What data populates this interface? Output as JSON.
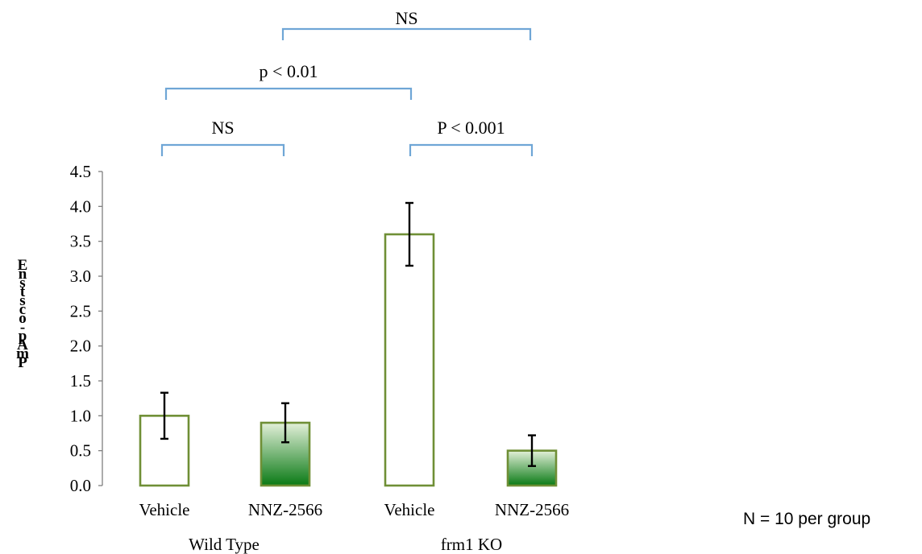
{
  "chart_data": {
    "type": "bar",
    "ylabel": "Enstsco-pAmP",
    "ylim": [
      0,
      4.5
    ],
    "y_ticks": [
      "0.0",
      "0.5",
      "1.0",
      "1.5",
      "2.0",
      "2.5",
      "3.0",
      "3.5",
      "4.0",
      "4.5"
    ],
    "categories": [
      "Vehicle",
      "NNZ-2566",
      "Vehicle",
      "NNZ-2566"
    ],
    "groups": [
      {
        "label": "Wild Type",
        "categories": [
          0,
          1
        ]
      },
      {
        "label": "frm1 KO",
        "categories": [
          2,
          3
        ]
      }
    ],
    "bars": [
      {
        "label": "Vehicle",
        "group": "Wild Type",
        "value": 1.0,
        "error": 0.33,
        "fill": "none"
      },
      {
        "label": "NNZ-2566",
        "group": "Wild Type",
        "value": 0.9,
        "error": 0.28,
        "fill": "gradient"
      },
      {
        "label": "Vehicle",
        "group": "frm1 KO",
        "value": 3.6,
        "error": 0.45,
        "fill": "none"
      },
      {
        "label": "NNZ-2566",
        "group": "frm1 KO",
        "value": 0.5,
        "error": 0.22,
        "fill": "gradient"
      }
    ],
    "comparisons": [
      {
        "from": 0,
        "to": 1,
        "label": "NS"
      },
      {
        "from": 0,
        "to": 2,
        "label": "p < 0.01"
      },
      {
        "from": 2,
        "to": 3,
        "label": "P < 0.001"
      },
      {
        "from": 1,
        "to": 3,
        "label": "NS"
      }
    ],
    "note": "N = 10 per group",
    "colors": {
      "bar_outline": "#6f8f36",
      "gradient_top": "#e3f0d9",
      "gradient_bottom": "#0a7a15",
      "bracket": "#6fa6d6",
      "error_bar": "#000000",
      "axis": "#808080"
    }
  }
}
